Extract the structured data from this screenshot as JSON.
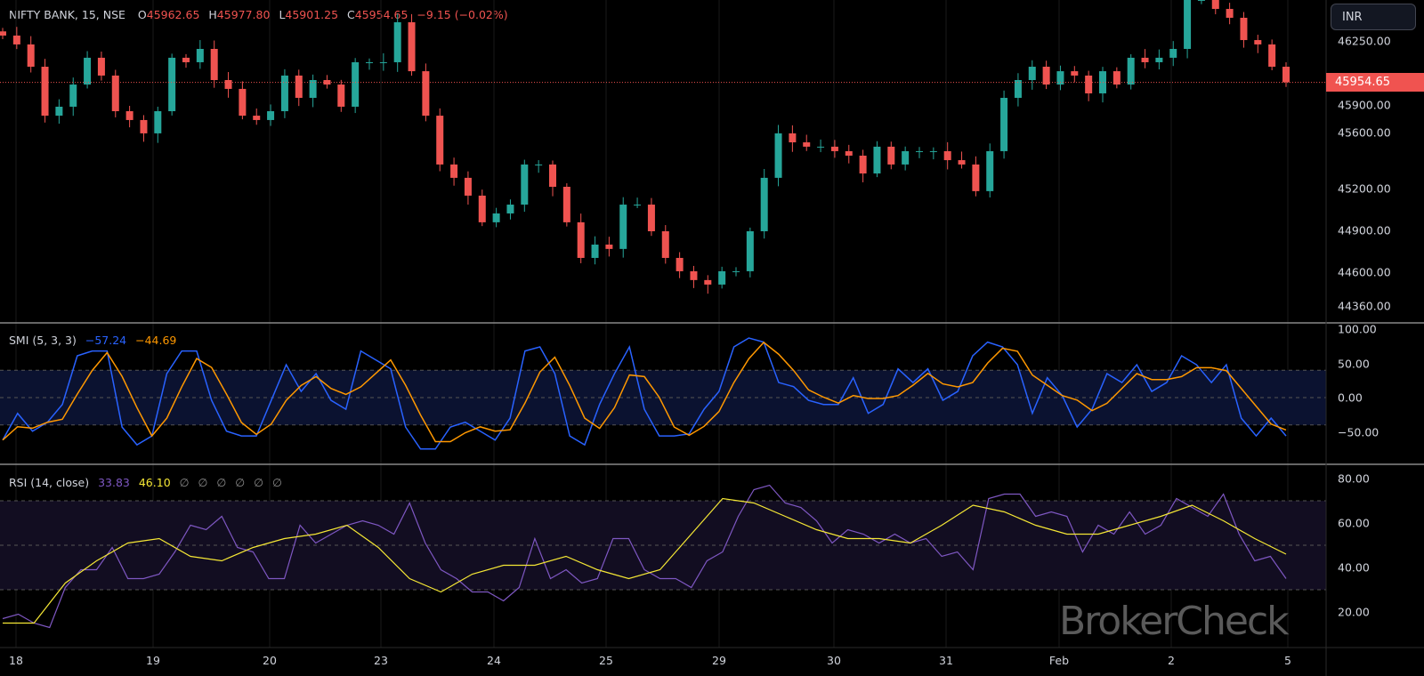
{
  "header": {
    "symbol": "NIFTY BANK, 15, NSE",
    "o_label": "O",
    "open": "45962.65",
    "h_label": "H",
    "high": "45977.80",
    "l_label": "L",
    "low": "45901.25",
    "c_label": "C",
    "close": "45954.65",
    "change": "−9.15 (−0.02%)"
  },
  "currency": "INR",
  "watermark": "BrokerCheck",
  "colors": {
    "up": "#26a69a",
    "down": "#ef5350",
    "smi": "#2962ff",
    "smi_signal": "#ff9800",
    "rsi": "#7e57c2",
    "rsi_ma": "#f5e735"
  },
  "chart_data": [
    {
      "type": "candlestick",
      "title": "NIFTY BANK, 15, NSE",
      "last_price": "45954.65",
      "y_ticks": [
        "46250.00",
        "45900.00",
        "45600.00",
        "45200.00",
        "44900.00",
        "44600.00",
        "44360.00"
      ],
      "x_ticks": [
        "18",
        "19",
        "20",
        "23",
        "24",
        "25",
        "29",
        "30",
        "31",
        "Feb",
        "2",
        "5"
      ],
      "close": [
        46288,
        46225,
        46066,
        45717,
        45781,
        45939,
        46130,
        46003,
        45749,
        45686,
        45591,
        45749,
        46130,
        46098,
        46193,
        45971,
        45908,
        45717,
        45686,
        45749,
        46003,
        45844,
        45971,
        45939,
        45781,
        46098,
        46098,
        46098,
        46383,
        46034,
        45717,
        45369,
        45274,
        45147,
        44957,
        45020,
        45083,
        45369,
        45369,
        45210,
        44957,
        44703,
        44798,
        44767,
        45083,
        45083,
        44893,
        44703,
        44608,
        44545,
        44513,
        44608,
        44608,
        44893,
        45274,
        45591,
        45527,
        45496,
        45496,
        45464,
        45432,
        45305,
        45496,
        45369,
        45464,
        45464,
        45464,
        45400,
        45369,
        45179,
        45464,
        45844,
        45971,
        46066,
        45939,
        46034,
        46003,
        45876,
        46034,
        45939,
        46130,
        46098,
        46130,
        46193,
        46542,
        46542,
        46478,
        46415,
        46256,
        46225,
        46066,
        45955
      ]
    },
    {
      "type": "line",
      "title": "SMI (5, 3, 3)",
      "values_shown": [
        "−57.24",
        "−44.69"
      ],
      "y_ticks": [
        "100.00",
        "50.00",
        "0.00",
        "−50.00"
      ],
      "bands": [
        40,
        0,
        -40
      ],
      "series": [
        {
          "name": "SMI",
          "values": [
            -62,
            -23,
            -49,
            -36,
            -10,
            61,
            68,
            68,
            -43,
            -69,
            -56,
            35,
            68,
            68,
            -4,
            -49,
            -56,
            -56,
            -4,
            48,
            9,
            35,
            -4,
            -17,
            68,
            55,
            42,
            -43,
            -75,
            -75,
            -43,
            -36,
            -49,
            -62,
            -30,
            68,
            74,
            35,
            -56,
            -69,
            -10,
            35,
            74,
            -17,
            -56,
            -56,
            -53,
            -17,
            9,
            74,
            87,
            81,
            22,
            16,
            -4,
            -10,
            -10,
            29,
            -23,
            -10,
            42,
            22,
            42,
            -4,
            9,
            61,
            81,
            74,
            48,
            -23,
            29,
            3,
            -43,
            -17,
            35,
            22,
            48,
            9,
            22,
            61,
            48,
            22,
            48,
            -30,
            -56,
            -30,
            -56
          ]
        }
      ]
    },
    {
      "type": "line",
      "title": "RSI (14, close)",
      "values_shown": [
        "33.83",
        "46.10",
        "∅",
        "∅",
        "∅",
        "∅",
        "∅",
        "∅"
      ],
      "y_ticks": [
        "80.00",
        "60.00",
        "40.00",
        "20.00"
      ],
      "bands": [
        70,
        50,
        30
      ],
      "series": [
        {
          "name": "RSI",
          "values": [
            17,
            19,
            15,
            13,
            31,
            39,
            39,
            49,
            35,
            35,
            37,
            47,
            59,
            57,
            63,
            49,
            47,
            35,
            35,
            59,
            51,
            55,
            59,
            61,
            59,
            55,
            69,
            51,
            39,
            35,
            29,
            29,
            25,
            31,
            53,
            35,
            39,
            33,
            35,
            53,
            53,
            39,
            35,
            35,
            31,
            43,
            47,
            63,
            75,
            77,
            69,
            67,
            61,
            51,
            57,
            55,
            51,
            55,
            51,
            53,
            45,
            47,
            39,
            71,
            73,
            73,
            63,
            65,
            63,
            47,
            59,
            55,
            65,
            55,
            59,
            71,
            67,
            63,
            73,
            55,
            43,
            45,
            35
          ]
        },
        {
          "name": "RSI MA",
          "values": [
            15,
            15,
            33,
            43,
            51,
            53,
            45,
            43,
            49,
            53,
            55,
            59,
            49,
            35,
            29,
            37,
            41,
            41,
            45,
            39,
            35,
            39,
            55,
            71,
            69,
            63,
            57,
            53,
            53,
            51,
            59,
            68,
            65,
            59,
            55,
            55,
            59,
            63,
            68,
            61,
            53,
            46
          ]
        }
      ]
    }
  ]
}
